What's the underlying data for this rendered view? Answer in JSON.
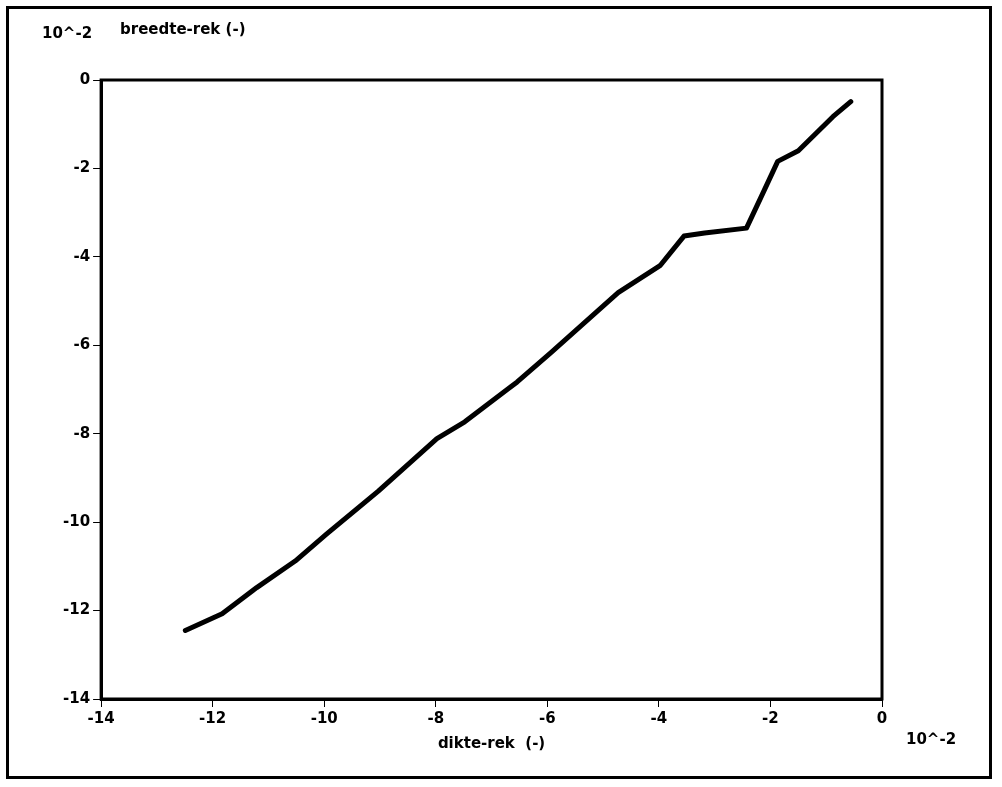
{
  "chart_data": {
    "type": "line",
    "xlabel": "dikte-rek  (-)",
    "ylabel": "breedte-rek  (-)",
    "annotations": [
      "10^-2",
      "10^-2"
    ],
    "xlim": [
      -14,
      0
    ],
    "xticks": [
      -14,
      -12,
      -10,
      -8,
      -6,
      -4,
      -2,
      0
    ],
    "ylim": [
      -14,
      0
    ],
    "yticks": [
      -14,
      -12,
      -10,
      -8,
      -6,
      -4,
      -2,
      0
    ],
    "grid": false,
    "legend": false,
    "marker": "none",
    "line_style": "solid",
    "series": [
      {
        "color": "#000000",
        "x": [
          -12.49,
          -11.83,
          -11.21,
          -10.52,
          -9.96,
          -9.03,
          -7.98,
          -7.48,
          -6.54,
          -5.93,
          -4.73,
          -3.98,
          -3.55,
          -3.18,
          -2.43,
          -2.11,
          -1.87,
          -1.5,
          -0.88,
          -0.56
        ],
        "values": [
          -12.45,
          -12.07,
          -11.48,
          -10.88,
          -10.27,
          -9.3,
          -8.11,
          -7.73,
          -6.83,
          -6.16,
          -4.81,
          -4.2,
          -3.53,
          -3.46,
          -3.35,
          -2.49,
          -1.84,
          -1.6,
          -0.83,
          -0.49
        ]
      }
    ]
  }
}
